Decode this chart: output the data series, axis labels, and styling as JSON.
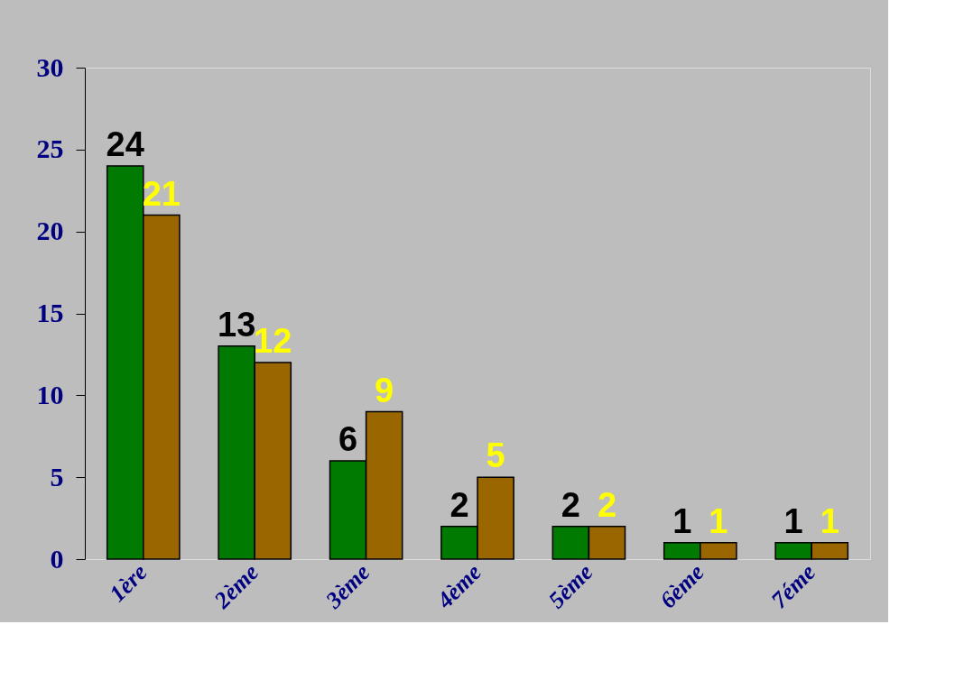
{
  "chart_data": {
    "type": "bar",
    "categories": [
      "1ère",
      "2ème",
      "3ème",
      "4ème",
      "5ème",
      "6ème",
      "7éme"
    ],
    "series": [
      {
        "color": "#007a00",
        "values": [
          24,
          13,
          6,
          2,
          2,
          1,
          1
        ]
      },
      {
        "color": "#996600",
        "values": [
          21,
          12,
          9,
          5,
          2,
          1,
          1
        ]
      }
    ],
    "ylim": [
      0,
      30
    ],
    "yticks": [
      0,
      5,
      10,
      15,
      20,
      25,
      30
    ],
    "grid": false,
    "legend": false,
    "data_labels": true
  }
}
